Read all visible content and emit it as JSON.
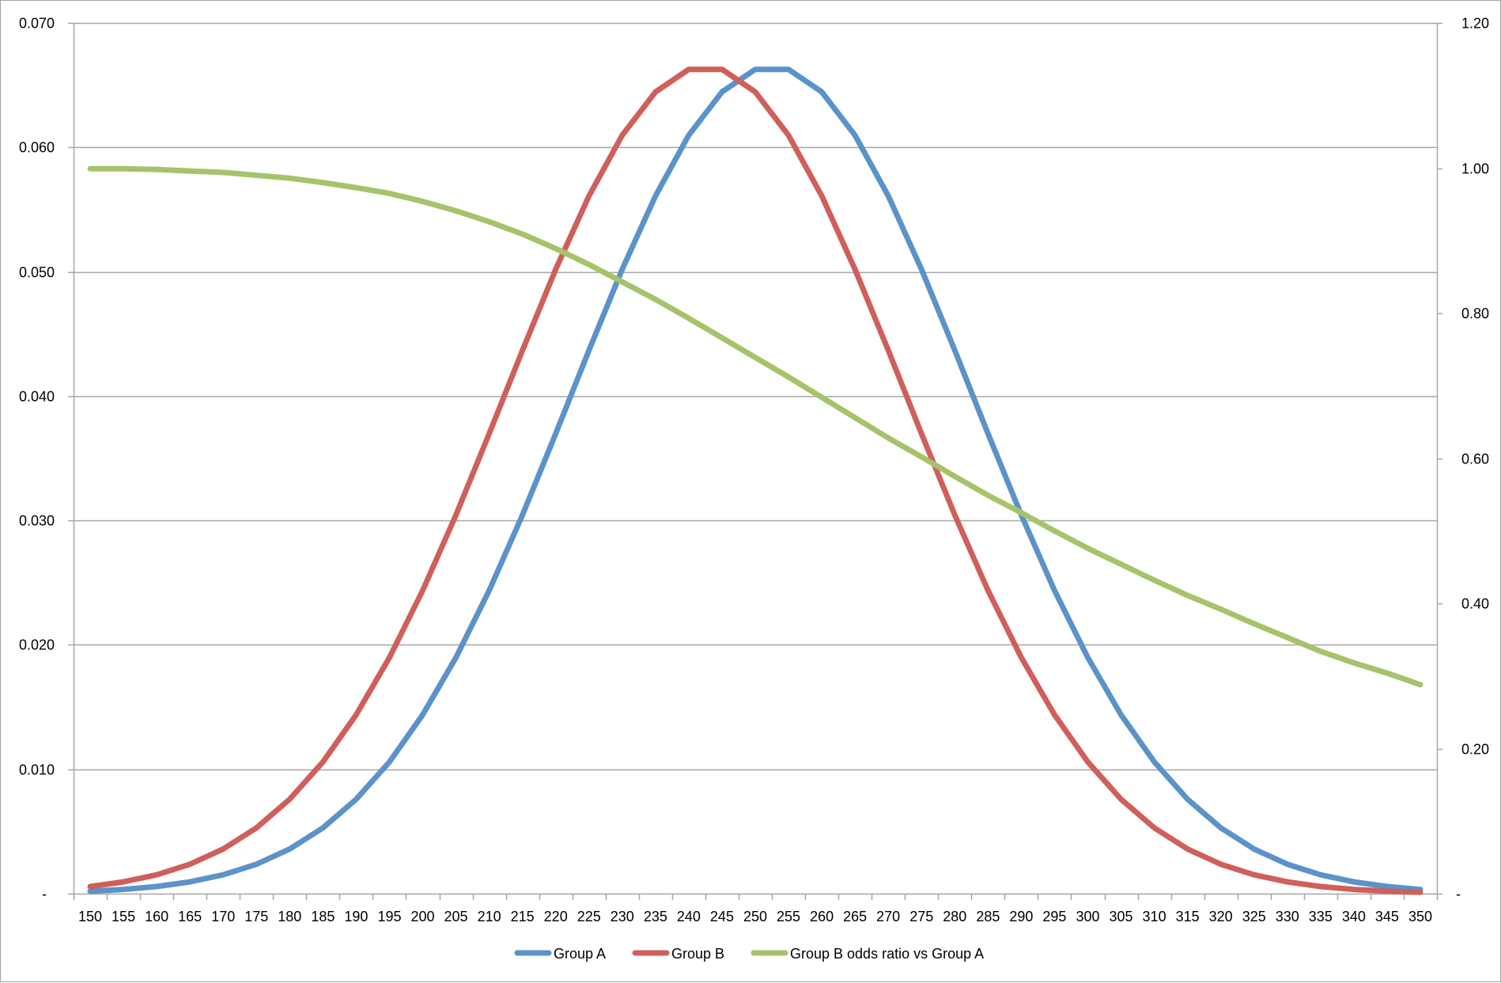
{
  "chart_data": {
    "type": "line",
    "title": "",
    "xlabel": "",
    "ylabel": "",
    "y2label": "",
    "grid": true,
    "legend_position": "bottom",
    "categories": [
      150,
      155,
      160,
      165,
      170,
      175,
      180,
      185,
      190,
      195,
      200,
      205,
      210,
      215,
      220,
      225,
      230,
      235,
      240,
      245,
      250,
      255,
      260,
      265,
      270,
      275,
      280,
      285,
      290,
      295,
      300,
      305,
      310,
      315,
      320,
      325,
      330,
      335,
      340,
      345,
      350
    ],
    "y_axis": {
      "side": "left",
      "ylim": [
        0,
        0.07
      ],
      "ticks": [
        0,
        0.01,
        0.02,
        0.03,
        0.04,
        0.05,
        0.06,
        0.07
      ],
      "tick_labels": [
        "-",
        "0.010",
        "0.020",
        "0.030",
        "0.040",
        "0.050",
        "0.060",
        "0.070"
      ]
    },
    "y2_axis": {
      "side": "right",
      "ylim": [
        0,
        1.2
      ],
      "ticks": [
        0,
        0.2,
        0.4,
        0.6,
        0.8,
        1.0,
        1.2
      ],
      "tick_labels": [
        "-",
        "0.20",
        "0.40",
        "0.60",
        "0.80",
        "1.00",
        "1.20"
      ]
    },
    "series": [
      {
        "name": "Group A",
        "axis": "left",
        "color": "#5b93c9",
        "values": [
          0.000194,
          0.000338,
          0.000573,
          0.000945,
          0.001516,
          0.002364,
          0.003586,
          0.005291,
          0.007592,
          0.010595,
          0.014381,
          0.018985,
          0.024379,
          0.030449,
          0.036981,
          0.043684,
          0.050197,
          0.056096,
          0.060971,
          0.064454,
          0.066269,
          0.066269,
          0.064454,
          0.060971,
          0.056096,
          0.050197,
          0.043684,
          0.036981,
          0.030449,
          0.024379,
          0.018985,
          0.014381,
          0.010595,
          0.007592,
          0.005291,
          0.003586,
          0.002364,
          0.001516,
          0.000945,
          0.000573,
          0.000338
        ]
      },
      {
        "name": "Group B",
        "axis": "left",
        "color": "#cf5f5a",
        "values": [
          0.000573,
          0.000945,
          0.001516,
          0.002364,
          0.003586,
          0.005291,
          0.007592,
          0.010595,
          0.014381,
          0.018985,
          0.024379,
          0.030449,
          0.036981,
          0.043684,
          0.050197,
          0.056096,
          0.060971,
          0.064454,
          0.066269,
          0.066269,
          0.064454,
          0.060971,
          0.056096,
          0.050197,
          0.043684,
          0.036981,
          0.030449,
          0.024379,
          0.018985,
          0.014381,
          0.010595,
          0.007592,
          0.005291,
          0.003586,
          0.002364,
          0.001516,
          0.000945,
          0.000573,
          0.000338,
          0.000194,
          0.000108
        ]
      },
      {
        "name": "Group B odds ratio vs Group A",
        "axis": "right",
        "color": "#a5c36a",
        "values": [
          0.999,
          0.999,
          0.998,
          0.996,
          0.994,
          0.99,
          0.986,
          0.98,
          0.973,
          0.965,
          0.954,
          0.941,
          0.926,
          0.909,
          0.889,
          0.867,
          0.843,
          0.819,
          0.793,
          0.766,
          0.739,
          0.712,
          0.684,
          0.656,
          0.628,
          0.602,
          0.575,
          0.549,
          0.525,
          0.5,
          0.476,
          0.454,
          0.432,
          0.411,
          0.392,
          0.372,
          0.353,
          0.334,
          0.318,
          0.304,
          0.288
        ]
      }
    ]
  },
  "legend": {
    "items": [
      {
        "label": "Group A",
        "color": "#5b93c9"
      },
      {
        "label": "Group B",
        "color": "#cf5f5a"
      },
      {
        "label": "Group B odds ratio vs Group A",
        "color": "#a5c36a"
      }
    ]
  },
  "style": {
    "grid_color": "#a6a6a6",
    "axis_color": "#a6a6a6",
    "text_color": "#000000"
  }
}
